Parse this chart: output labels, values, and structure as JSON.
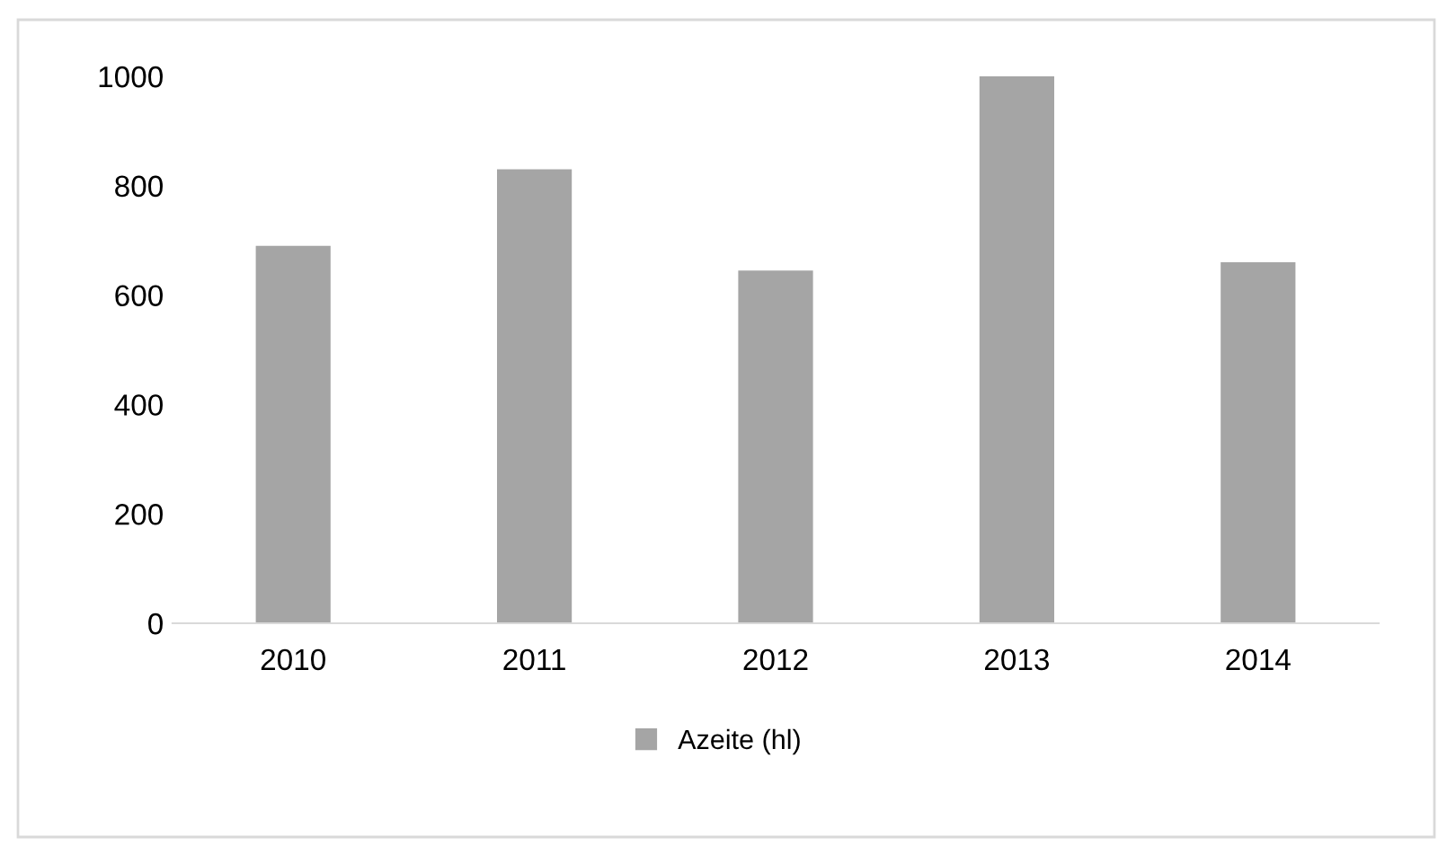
{
  "chart_data": {
    "type": "bar",
    "categories": [
      "2010",
      "2011",
      "2012",
      "2013",
      "2014"
    ],
    "series": [
      {
        "name": "Azeite (hl)",
        "color": "#a5a5a5",
        "values": [
          690,
          830,
          645,
          1000,
          660
        ]
      }
    ],
    "ylim": [
      0,
      1000
    ],
    "yticks": [
      0,
      200,
      400,
      600,
      800,
      1000
    ],
    "grid": false,
    "legend": "bottom"
  }
}
